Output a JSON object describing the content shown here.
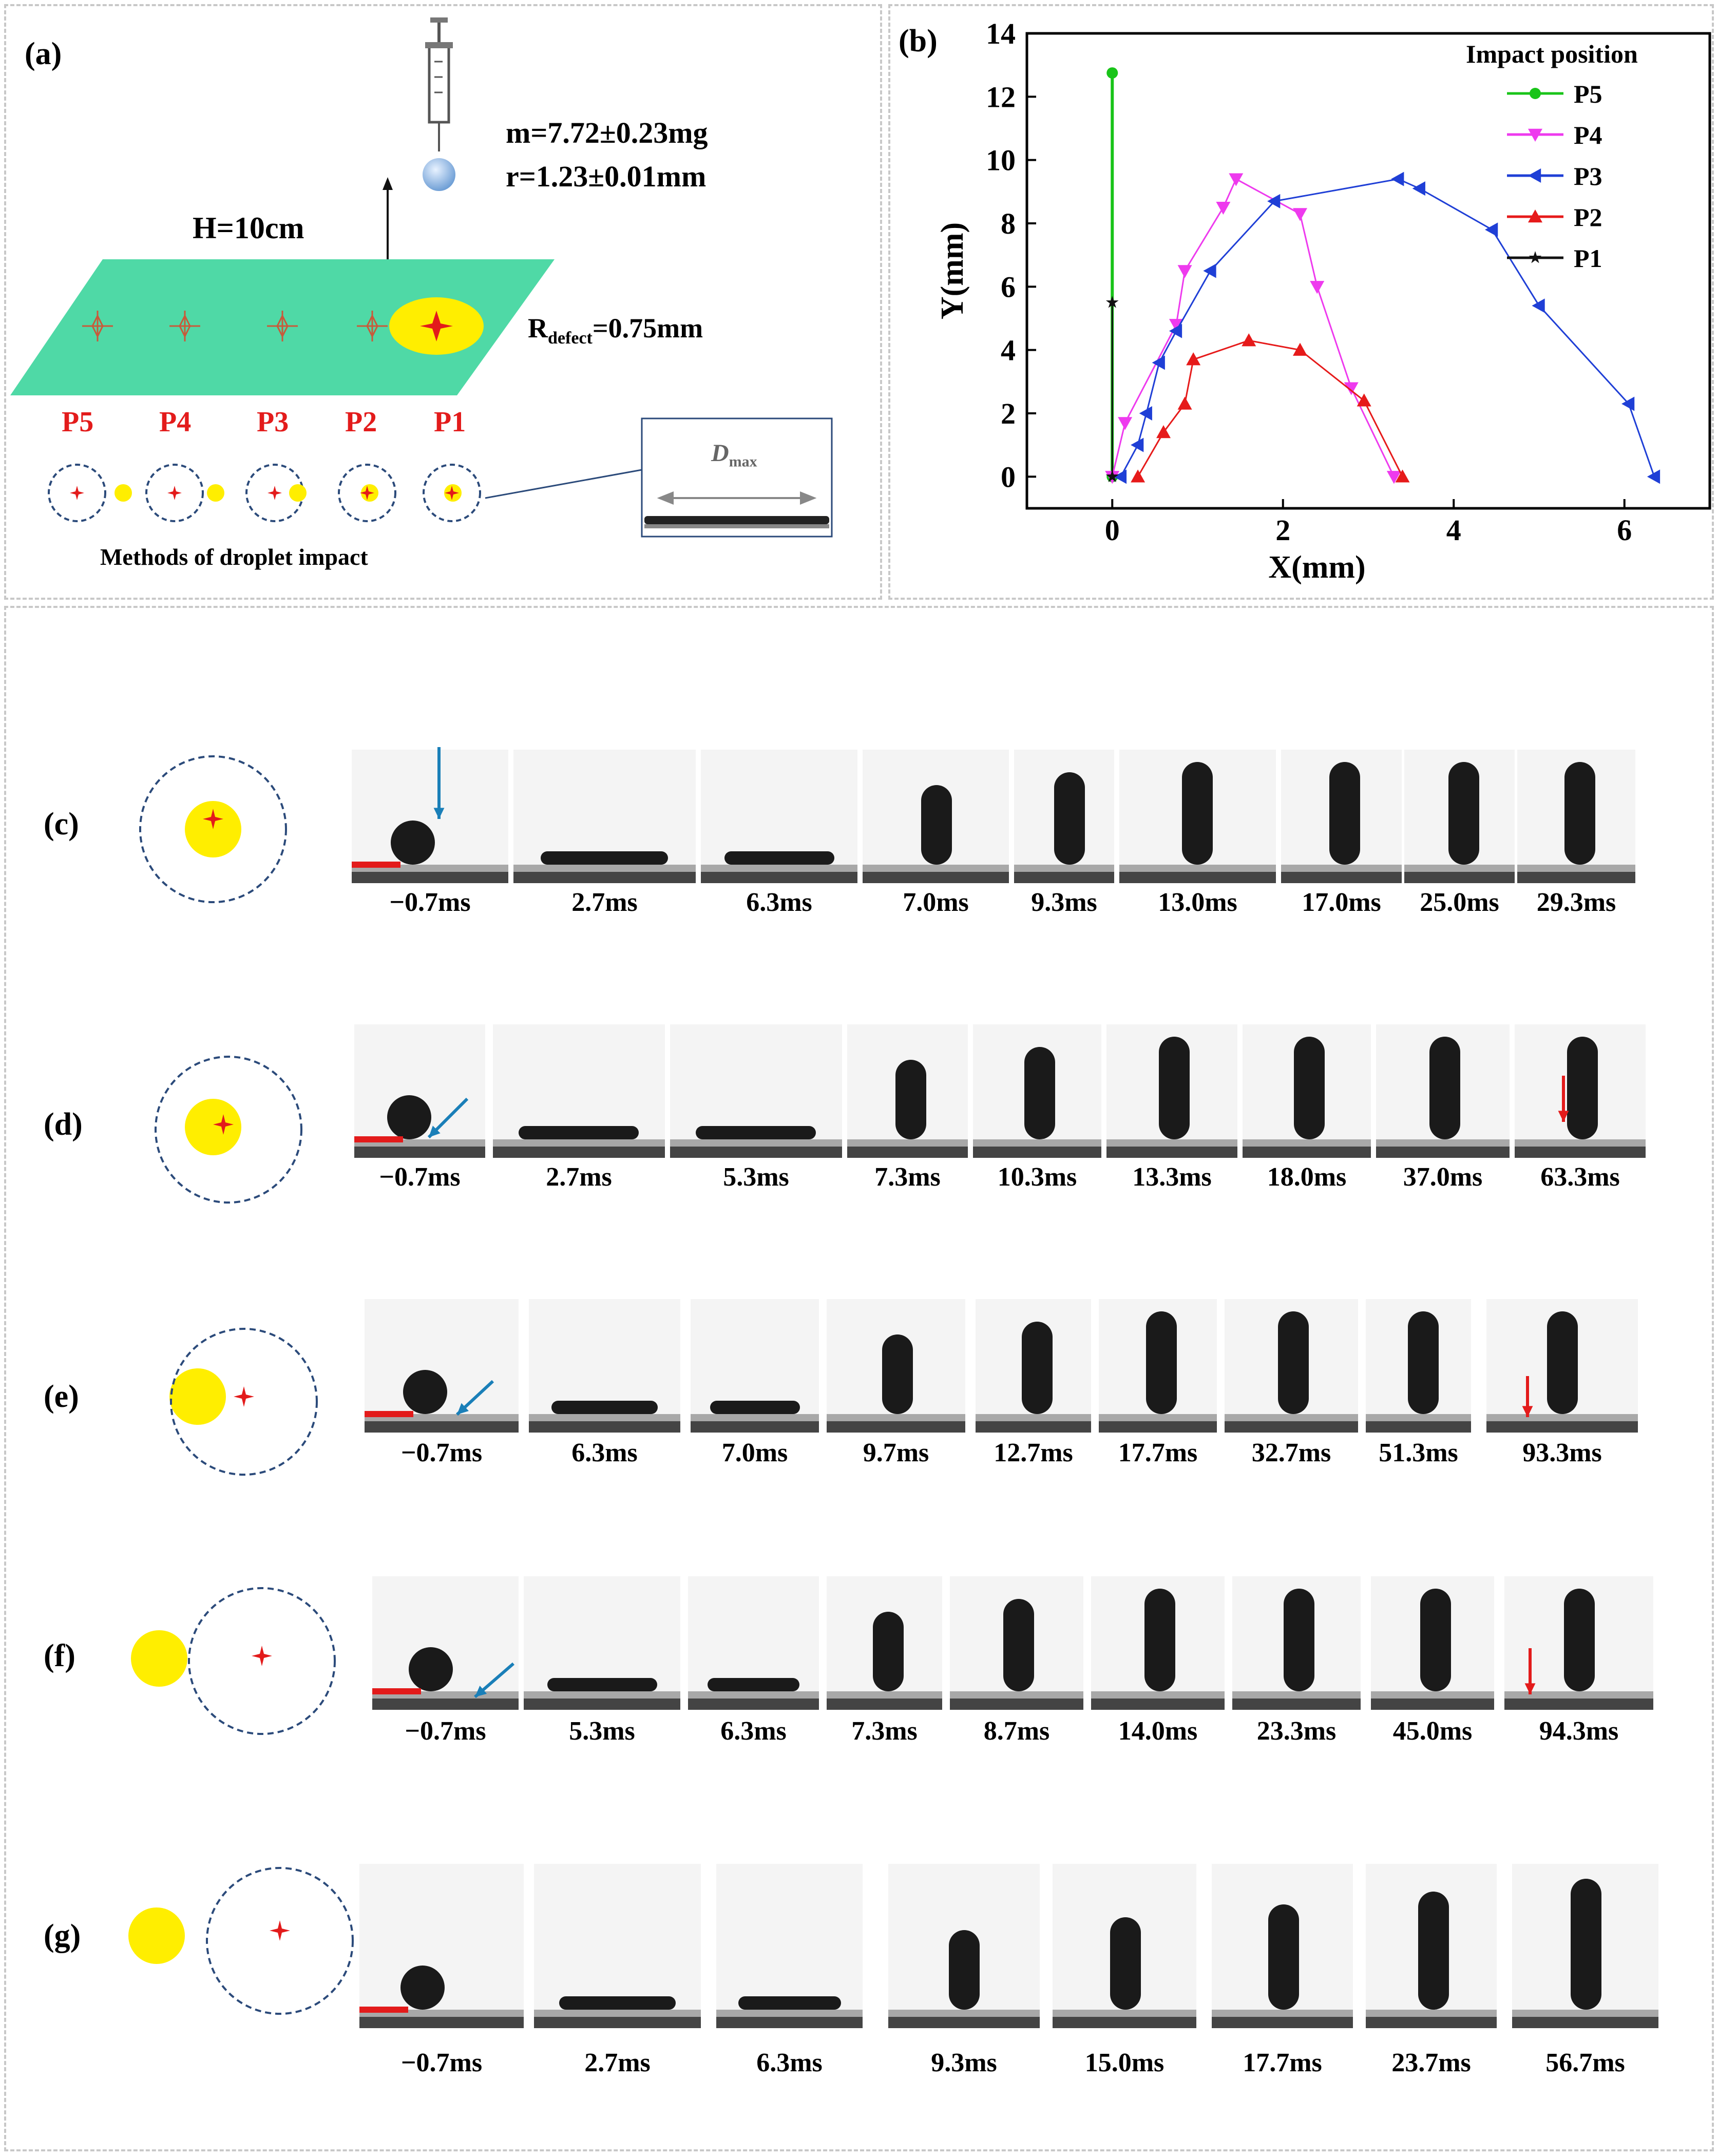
{
  "panel_a": {
    "label": "(a)",
    "mass": "m=7.72±0.23mg",
    "radius": "r=1.23±0.01mm",
    "height": "H=10cm",
    "defect_label_main": "R",
    "defect_label_sub": "defect",
    "defect_label_value": "=0.75mm",
    "positions": [
      "P5",
      "P4",
      "P3",
      "P2",
      "P1"
    ],
    "inset_label": "D",
    "inset_sub": "max",
    "methods_caption": "Methods of droplet impact"
  },
  "chart_data": {
    "type": "line",
    "panel_label": "(b)",
    "xlabel": "X(mm)",
    "ylabel": "Y(mm)",
    "xlim": [
      -1,
      7
    ],
    "ylim": [
      -1,
      14
    ],
    "xticks": [
      0,
      2,
      4,
      6
    ],
    "yticks": [
      0,
      2,
      4,
      6,
      8,
      10,
      12,
      14
    ],
    "legend_title": "Impact position",
    "legend_position": "top-right",
    "series": [
      {
        "name": "P5",
        "color": "#19c419",
        "marker": "circle",
        "x": [
          0,
          0
        ],
        "y": [
          0,
          12.75
        ]
      },
      {
        "name": "P4",
        "color": "#ee3aee",
        "marker": "triangle-down",
        "x": [
          0,
          0.15,
          0.75,
          0.85,
          1.3,
          1.45,
          2.2,
          2.4,
          2.8,
          3.3
        ],
        "y": [
          0,
          1.7,
          4.8,
          6.5,
          8.5,
          9.4,
          8.3,
          6.0,
          2.8,
          0
        ]
      },
      {
        "name": "P3",
        "color": "#1f3fd6",
        "marker": "triangle-left",
        "x": [
          0.1,
          0.3,
          0.4,
          0.55,
          0.75,
          1.15,
          1.9,
          3.35,
          3.6,
          4.45,
          5.0,
          6.05,
          6.35
        ],
        "y": [
          0,
          1.0,
          2.0,
          3.6,
          4.6,
          6.5,
          8.7,
          9.4,
          9.1,
          7.8,
          5.4,
          2.3,
          0
        ]
      },
      {
        "name": "P2",
        "color": "#e61a1a",
        "marker": "triangle-up",
        "x": [
          0.3,
          0.6,
          0.85,
          0.95,
          1.6,
          2.2,
          2.95,
          3.4
        ],
        "y": [
          0,
          1.4,
          2.3,
          3.7,
          4.3,
          4.0,
          2.4,
          0
        ]
      },
      {
        "name": "P1",
        "color": "#111111",
        "marker": "star",
        "x": [
          0,
          0,
          0
        ],
        "y": [
          0,
          5.5,
          0
        ]
      }
    ]
  },
  "rows": [
    {
      "label": "(c)",
      "times": [
        "−0.7ms",
        "2.7ms",
        "6.3ms",
        "7.0ms",
        "9.3ms",
        "13.0ms",
        "17.0ms",
        "25.0ms",
        "29.3ms"
      ]
    },
    {
      "label": "(d)",
      "times": [
        "−0.7ms",
        "2.7ms",
        "5.3ms",
        "7.3ms",
        "10.3ms",
        "13.3ms",
        "18.0ms",
        "37.0ms",
        "63.3ms"
      ]
    },
    {
      "label": "(e)",
      "times": [
        "−0.7ms",
        "6.3ms",
        "7.0ms",
        "9.7ms",
        "12.7ms",
        "17.7ms",
        "32.7ms",
        "51.3ms",
        "93.3ms"
      ]
    },
    {
      "label": "(f)",
      "times": [
        "−0.7ms",
        "5.3ms",
        "6.3ms",
        "7.3ms",
        "8.7ms",
        "14.0ms",
        "23.3ms",
        "45.0ms",
        "94.3ms"
      ]
    },
    {
      "label": "(g)",
      "times": [
        "−0.7ms",
        "2.7ms",
        "6.3ms",
        "9.3ms",
        "15.0ms",
        "17.7ms",
        "23.7ms",
        "56.7ms"
      ]
    }
  ],
  "colors": {
    "substrate": "#4fd9a6",
    "defect": "#ffee00",
    "mark": "#e31b1b",
    "dashed_circle": "#2b4a7a",
    "arrow_blue": "#1a7fb8",
    "arrow_red": "#e31b1b"
  }
}
